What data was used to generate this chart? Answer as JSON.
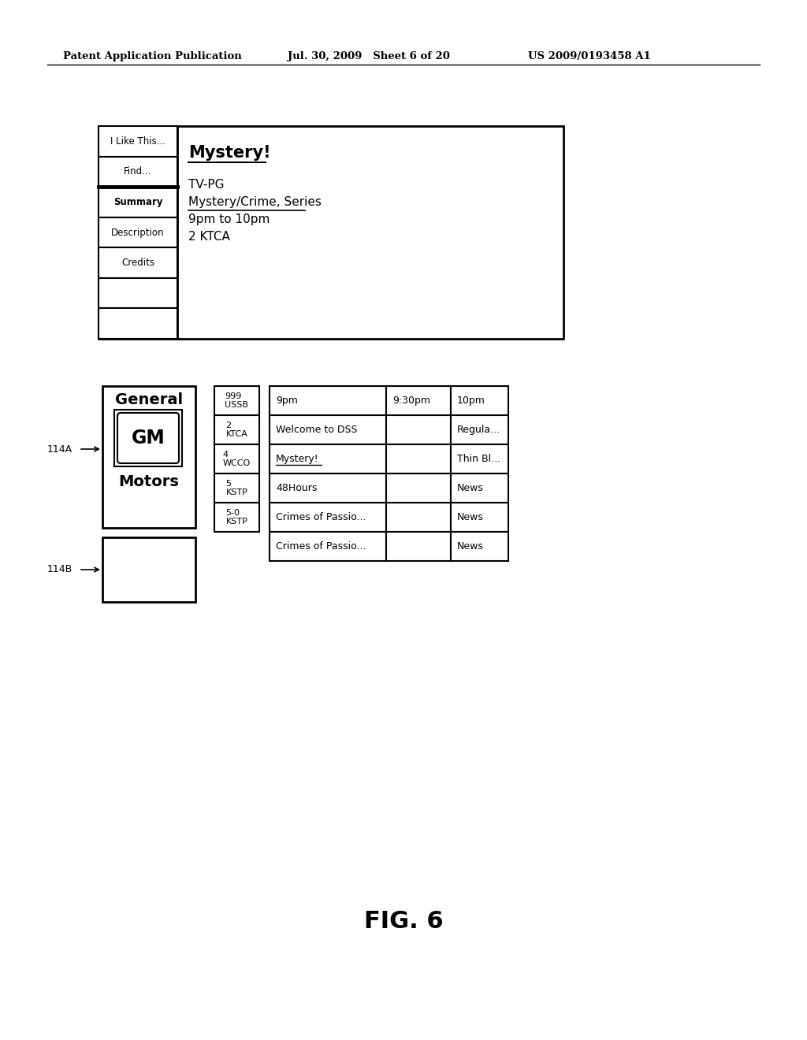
{
  "bg_color": "#ffffff",
  "header_left": "Patent Application Publication",
  "header_mid": "Jul. 30, 2009   Sheet 6 of 20",
  "header_right": "US 2009/0193458 A1",
  "fig_label": "FIG. 6",
  "top_panel": {
    "menu_items": [
      "I Like This...",
      "Find...",
      "Summary",
      "Description",
      "Credits",
      "",
      ""
    ],
    "title": "Mystery!",
    "details": [
      "TV-PG",
      "Mystery/Crime, Series",
      "9pm to 10pm",
      "2 KTCA"
    ]
  },
  "bottom_panel": {
    "ad_box_top_label": "General",
    "ad_box_logo": "GM",
    "ad_box_bottom_label": "Motors",
    "label_114A": "114A",
    "label_114B": "114B",
    "channels": [
      "999\nUSSB",
      "2\nKTCA",
      "4\nWCCO",
      "5\nKSTP",
      "5-0\nKSTP"
    ],
    "time_headers": [
      "9pm",
      "9:30pm",
      "10pm"
    ],
    "grid_rows": [
      [
        "Welcome to DSS",
        "",
        "Regula..."
      ],
      [
        "Mystery!",
        "",
        "Thin Bl..."
      ],
      [
        "48Hours",
        "",
        "News"
      ],
      [
        "Crimes of Passio...",
        "",
        "News"
      ],
      [
        "Crimes of Passio...",
        "",
        "News"
      ]
    ]
  }
}
